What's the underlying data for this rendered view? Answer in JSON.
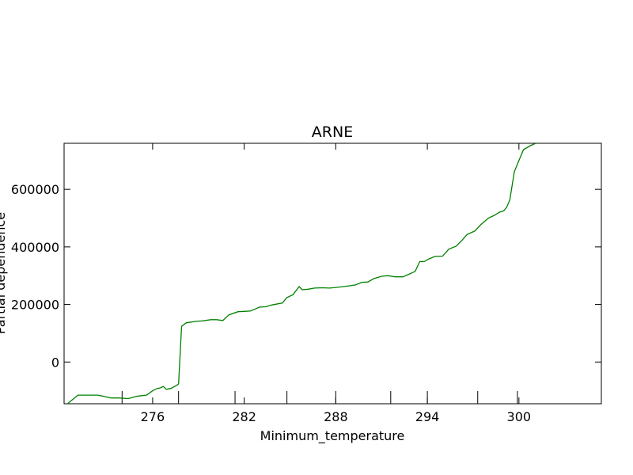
{
  "chart_data": {
    "type": "line",
    "title": "ARNE",
    "xlabel": "Minimum_temperature",
    "ylabel": "Partial dependence",
    "xlim": [
      270.2,
      305.4
    ],
    "ylim": [
      -145000,
      760000
    ],
    "xticks": [
      276,
      282,
      288,
      294,
      300
    ],
    "yticks": [
      0,
      200000,
      400000,
      600000
    ],
    "rug_x": [
      274.0,
      277.7,
      281.4,
      284.8,
      288.0,
      291.6,
      294.0,
      297.3,
      299.9
    ],
    "grid": false,
    "series": [
      {
        "color": "#008000",
        "x": [
          270.2,
          271.1,
          272.4,
          273.3,
          273.8,
          274.4,
          274.9,
          275.1,
          275.6,
          276.0,
          276.3,
          276.5,
          276.7,
          276.9,
          277.2,
          277.6,
          277.7,
          277.9,
          278.2,
          278.8,
          279.3,
          279.8,
          280.2,
          280.6,
          281.0,
          281.6,
          282.0,
          282.4,
          282.8,
          283.0,
          283.4,
          283.8,
          284.1,
          284.5,
          284.8,
          285.2,
          285.6,
          285.8,
          286.2,
          286.6,
          287.1,
          287.6,
          288.0,
          288.5,
          288.9,
          289.3,
          289.7,
          290.1,
          290.5,
          291.0,
          291.4,
          291.9,
          292.4,
          292.8,
          293.2,
          293.5,
          293.8,
          294.1,
          294.5,
          295.0,
          295.4,
          295.9,
          296.3,
          296.6,
          297.1,
          297.5,
          298.0,
          298.4,
          298.7,
          299.0,
          299.2,
          299.4,
          299.7,
          300.0,
          300.3,
          300.8,
          301.1
        ],
        "y": [
          -155000,
          -115000,
          -115000,
          -125000,
          -125000,
          -127000,
          -120000,
          -118000,
          -115000,
          -100000,
          -92000,
          -90000,
          -85000,
          -95000,
          -92000,
          -80000,
          -76000,
          124000,
          136000,
          141000,
          143000,
          147000,
          147000,
          144000,
          164000,
          175000,
          176000,
          177000,
          186000,
          191000,
          192000,
          198000,
          201000,
          205000,
          224000,
          234000,
          262000,
          251000,
          253000,
          257000,
          258000,
          257000,
          259000,
          262000,
          265000,
          268000,
          277000,
          278000,
          290000,
          298000,
          300000,
          296000,
          296000,
          305000,
          315000,
          349000,
          349000,
          358000,
          367000,
          368000,
          392000,
          403000,
          425000,
          443000,
          455000,
          477000,
          500000,
          510000,
          520000,
          525000,
          538000,
          563000,
          661000,
          700000,
          738000,
          753000,
          760000
        ]
      }
    ]
  }
}
